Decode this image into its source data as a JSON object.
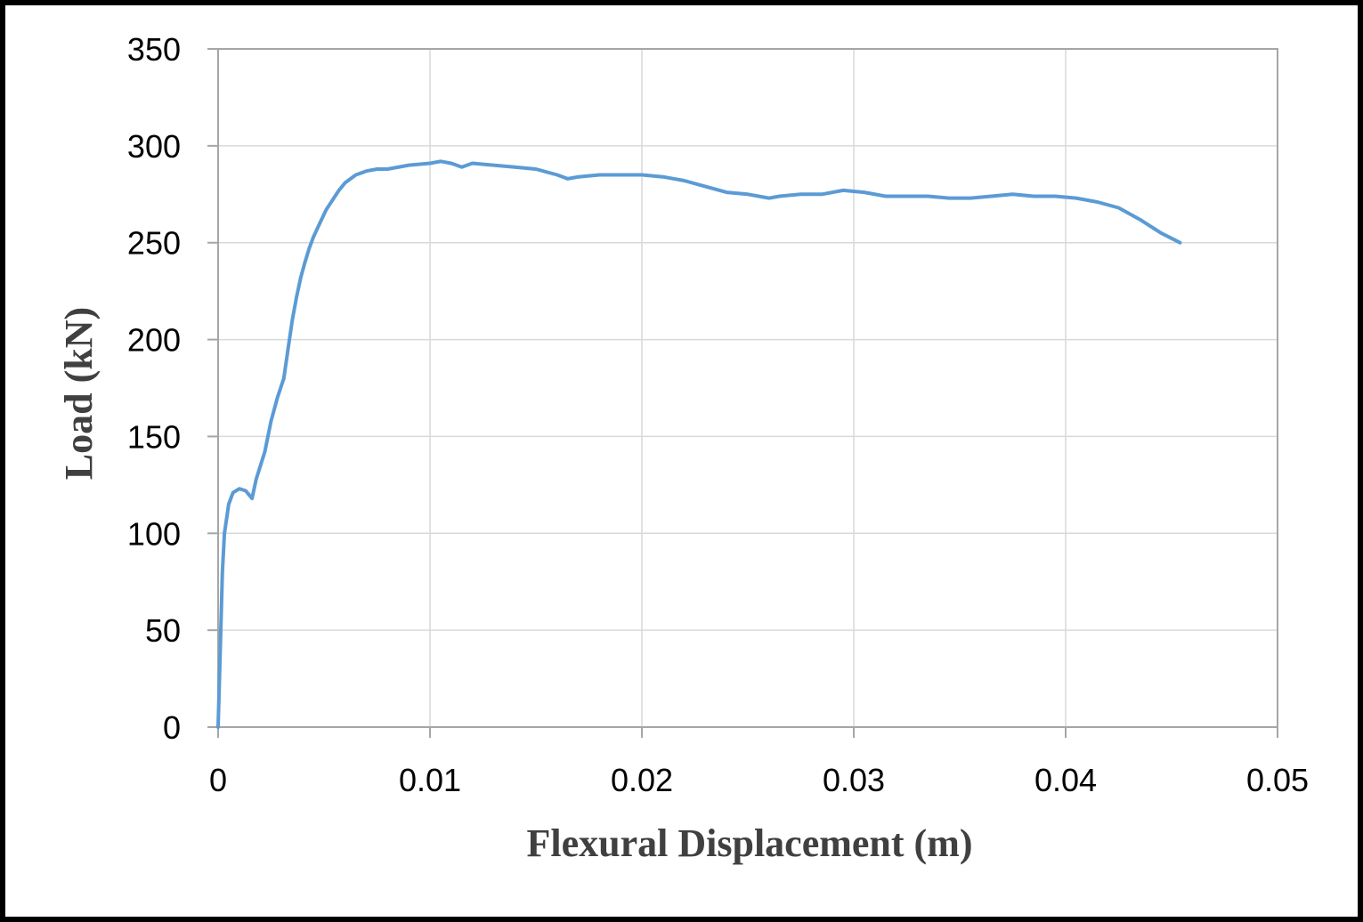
{
  "chart_data": {
    "type": "line",
    "title": "",
    "xlabel": "Flexural Displacement (m)",
    "ylabel": "Load (kN)",
    "xlim": [
      0,
      0.05
    ],
    "ylim": [
      0,
      350
    ],
    "x_ticks": [
      "0",
      "0.01",
      "0.02",
      "0.03",
      "0.04",
      "0.05"
    ],
    "y_ticks": [
      "0",
      "50",
      "100",
      "150",
      "200",
      "250",
      "300",
      "350"
    ],
    "grid": true,
    "legend": "none",
    "series": [
      {
        "color": "#5B9BD5",
        "points": [
          [
            0,
            0
          ],
          [
            0.0001,
            40
          ],
          [
            0.0002,
            80
          ],
          [
            0.0003,
            100
          ],
          [
            0.0005,
            115
          ],
          [
            0.0007,
            121
          ],
          [
            0.001,
            123
          ],
          [
            0.0013,
            122
          ],
          [
            0.0016,
            118
          ],
          [
            0.0018,
            128
          ],
          [
            0.002,
            135
          ],
          [
            0.0022,
            142
          ],
          [
            0.0025,
            158
          ],
          [
            0.0028,
            170
          ],
          [
            0.0031,
            180
          ],
          [
            0.0033,
            195
          ],
          [
            0.0035,
            210
          ],
          [
            0.0037,
            222
          ],
          [
            0.0039,
            232
          ],
          [
            0.0041,
            240
          ],
          [
            0.0043,
            247
          ],
          [
            0.0045,
            253
          ],
          [
            0.0048,
            260
          ],
          [
            0.0051,
            267
          ],
          [
            0.0054,
            272
          ],
          [
            0.0057,
            277
          ],
          [
            0.006,
            281
          ],
          [
            0.0065,
            285
          ],
          [
            0.007,
            287
          ],
          [
            0.0075,
            288
          ],
          [
            0.008,
            288
          ],
          [
            0.009,
            290
          ],
          [
            0.01,
            291
          ],
          [
            0.0105,
            292
          ],
          [
            0.011,
            291
          ],
          [
            0.0115,
            289
          ],
          [
            0.012,
            291
          ],
          [
            0.013,
            290
          ],
          [
            0.014,
            289
          ],
          [
            0.015,
            288
          ],
          [
            0.016,
            285
          ],
          [
            0.0165,
            283
          ],
          [
            0.017,
            284
          ],
          [
            0.018,
            285
          ],
          [
            0.019,
            285
          ],
          [
            0.02,
            285
          ],
          [
            0.021,
            284
          ],
          [
            0.022,
            282
          ],
          [
            0.023,
            279
          ],
          [
            0.024,
            276
          ],
          [
            0.025,
            275
          ],
          [
            0.026,
            273
          ],
          [
            0.0265,
            274
          ],
          [
            0.0275,
            275
          ],
          [
            0.0285,
            275
          ],
          [
            0.0295,
            277
          ],
          [
            0.0305,
            276
          ],
          [
            0.0315,
            274
          ],
          [
            0.0325,
            274
          ],
          [
            0.0335,
            274
          ],
          [
            0.0345,
            273
          ],
          [
            0.0355,
            273
          ],
          [
            0.0365,
            274
          ],
          [
            0.0375,
            275
          ],
          [
            0.0385,
            274
          ],
          [
            0.0395,
            274
          ],
          [
            0.0405,
            273
          ],
          [
            0.0415,
            271
          ],
          [
            0.0425,
            268
          ],
          [
            0.0435,
            262
          ],
          [
            0.0445,
            255
          ],
          [
            0.0454,
            250
          ]
        ]
      }
    ]
  }
}
